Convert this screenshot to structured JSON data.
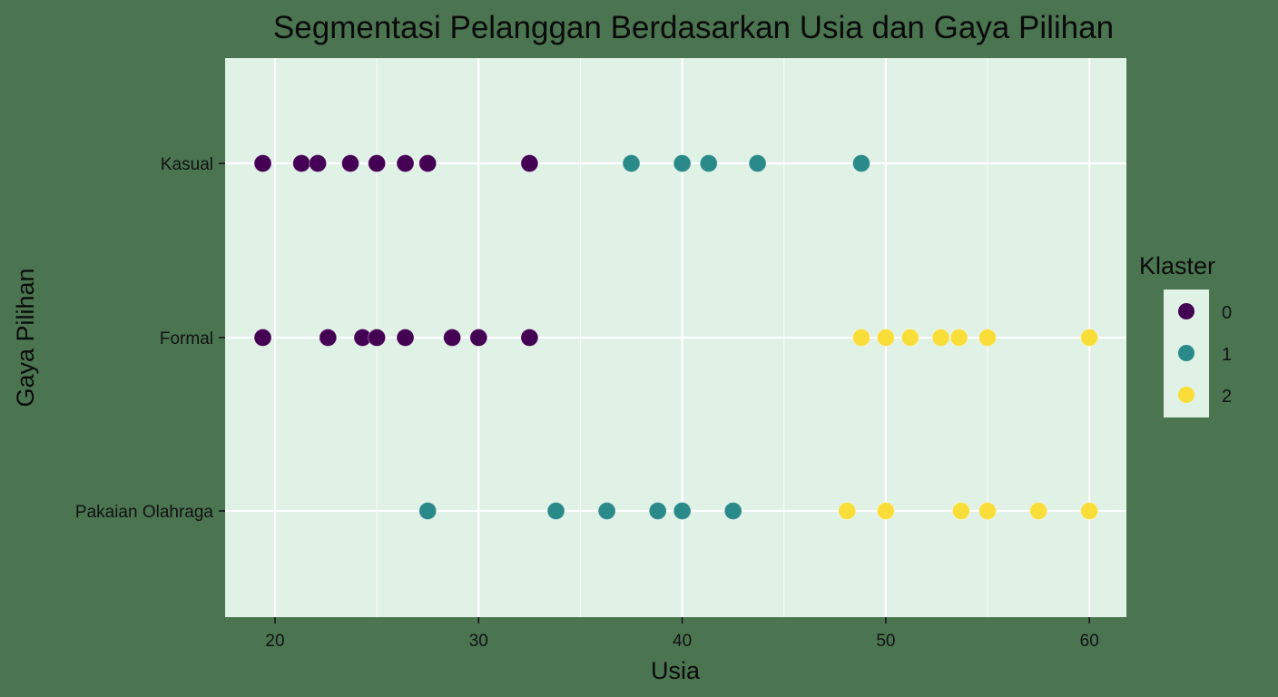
{
  "chart_data": {
    "type": "scatter",
    "title": "Segmentasi Pelanggan Berdasarkan Usia dan Gaya Pilihan",
    "xlabel": "Usia",
    "ylabel": "Gaya Pilihan",
    "xlim": [
      17.5,
      62
    ],
    "x_ticks": [
      20,
      30,
      40,
      50,
      60
    ],
    "x_minor_ticks": [
      25,
      35,
      45,
      55
    ],
    "y_categories": [
      "Kasual",
      "Formal",
      "Pakaian Olahraga"
    ],
    "grid": true,
    "legend": {
      "title": "Klaster",
      "position": "right",
      "entries": [
        {
          "label": "0",
          "color": "#440154"
        },
        {
          "label": "1",
          "color": "#2A8A8A"
        },
        {
          "label": "2",
          "color": "#F9DE3A"
        }
      ]
    },
    "series": [
      {
        "name": "0",
        "color": "#440154",
        "points": [
          {
            "x": 19.4,
            "y": "Kasual"
          },
          {
            "x": 21.3,
            "y": "Kasual"
          },
          {
            "x": 22.1,
            "y": "Kasual"
          },
          {
            "x": 23.7,
            "y": "Kasual"
          },
          {
            "x": 25.0,
            "y": "Kasual"
          },
          {
            "x": 26.4,
            "y": "Kasual"
          },
          {
            "x": 27.5,
            "y": "Kasual"
          },
          {
            "x": 32.5,
            "y": "Kasual"
          },
          {
            "x": 19.4,
            "y": "Formal"
          },
          {
            "x": 22.6,
            "y": "Formal"
          },
          {
            "x": 24.3,
            "y": "Formal"
          },
          {
            "x": 25.0,
            "y": "Formal"
          },
          {
            "x": 26.4,
            "y": "Formal"
          },
          {
            "x": 28.7,
            "y": "Formal"
          },
          {
            "x": 30.0,
            "y": "Formal"
          },
          {
            "x": 32.5,
            "y": "Formal"
          }
        ]
      },
      {
        "name": "1",
        "color": "#2A8A8A",
        "points": [
          {
            "x": 37.5,
            "y": "Kasual"
          },
          {
            "x": 40.0,
            "y": "Kasual"
          },
          {
            "x": 41.3,
            "y": "Kasual"
          },
          {
            "x": 43.7,
            "y": "Kasual"
          },
          {
            "x": 48.8,
            "y": "Kasual"
          },
          {
            "x": 27.5,
            "y": "Pakaian Olahraga"
          },
          {
            "x": 33.8,
            "y": "Pakaian Olahraga"
          },
          {
            "x": 36.3,
            "y": "Pakaian Olahraga"
          },
          {
            "x": 38.8,
            "y": "Pakaian Olahraga"
          },
          {
            "x": 40.0,
            "y": "Pakaian Olahraga"
          },
          {
            "x": 42.5,
            "y": "Pakaian Olahraga"
          }
        ]
      },
      {
        "name": "2",
        "color": "#F9DE3A",
        "points": [
          {
            "x": 48.8,
            "y": "Formal"
          },
          {
            "x": 50.0,
            "y": "Formal"
          },
          {
            "x": 51.2,
            "y": "Formal"
          },
          {
            "x": 52.7,
            "y": "Formal"
          },
          {
            "x": 53.6,
            "y": "Formal"
          },
          {
            "x": 55.0,
            "y": "Formal"
          },
          {
            "x": 60.0,
            "y": "Formal"
          },
          {
            "x": 48.1,
            "y": "Pakaian Olahraga"
          },
          {
            "x": 50.0,
            "y": "Pakaian Olahraga"
          },
          {
            "x": 53.7,
            "y": "Pakaian Olahraga"
          },
          {
            "x": 55.0,
            "y": "Pakaian Olahraga"
          },
          {
            "x": 57.5,
            "y": "Pakaian Olahraga"
          },
          {
            "x": 60.0,
            "y": "Pakaian Olahraga"
          }
        ]
      }
    ]
  },
  "colors": {
    "background": "#4B7551",
    "panel": "#E0F1E6",
    "grid": "#FFFFFF"
  }
}
